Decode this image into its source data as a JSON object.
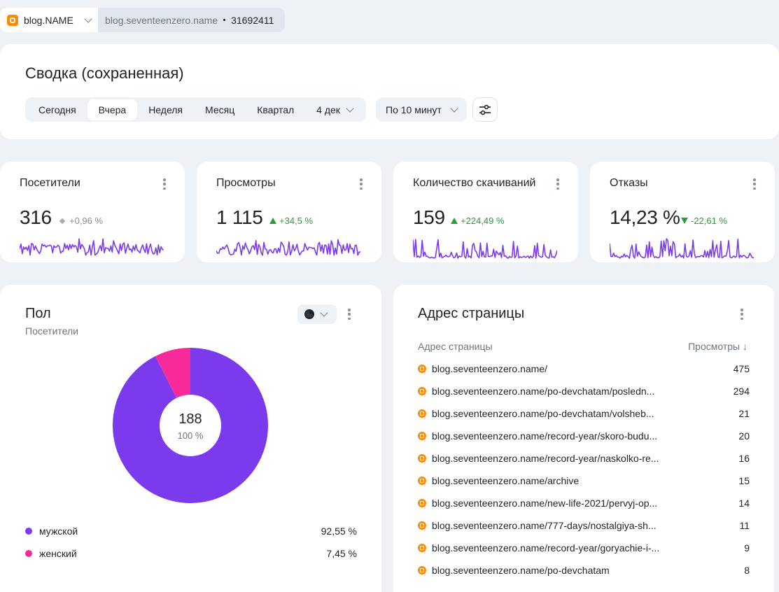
{
  "counter": {
    "name": "blog.NAME",
    "url": "blog.seventeenzero.name",
    "id": "31692411"
  },
  "header": {
    "title": "Сводка (сохраненная)",
    "periods": [
      "Сегодня",
      "Вчера",
      "Неделя",
      "Месяц",
      "Квартал"
    ],
    "active_period": "Вчера",
    "date_label": "4 дек",
    "grouping": "По 10 минут"
  },
  "metrics": [
    {
      "title": "Посетители",
      "value": "316",
      "delta": "+0,96 %",
      "trend": "flat"
    },
    {
      "title": "Просмотры",
      "value": "1 115",
      "delta": "+34,5 %",
      "trend": "up"
    },
    {
      "title": "Количество скачиваний",
      "value": "159",
      "delta": "+224,49 %",
      "trend": "up"
    },
    {
      "title": "Отказы",
      "value": "14,23 %",
      "delta": "-22,61 %",
      "trend": "down"
    }
  ],
  "colors": {
    "accent": "#7c3aed",
    "female": "#f72a9a",
    "positive": "#2e9c3d",
    "blog_icon": "#ff8a00"
  },
  "gender": {
    "title": "Пол",
    "subtitle": "Посетители",
    "total": "188",
    "total_pct": "100 %",
    "legend": [
      {
        "label": "мужской",
        "pct": "92,55 %",
        "value": 92.55
      },
      {
        "label": "женский",
        "pct": "7,45 %",
        "value": 7.45
      }
    ]
  },
  "pages": {
    "title": "Адрес страницы",
    "col_url": "Адрес страницы",
    "col_views": "Просмотры ↓",
    "rows": [
      {
        "url": "blog.seventeenzero.name/",
        "views": "475"
      },
      {
        "url": "blog.seventeenzero.name/po-devchatam/posledn...",
        "views": "294"
      },
      {
        "url": "blog.seventeenzero.name/po-devchatam/volsheb...",
        "views": "21"
      },
      {
        "url": "blog.seventeenzero.name/record-year/skoro-budu...",
        "views": "20"
      },
      {
        "url": "blog.seventeenzero.name/record-year/naskolko-re...",
        "views": "16"
      },
      {
        "url": "blog.seventeenzero.name/archive",
        "views": "15"
      },
      {
        "url": "blog.seventeenzero.name/new-life-2021/pervyj-op...",
        "views": "14"
      },
      {
        "url": "blog.seventeenzero.name/777-days/nostalgiya-sh...",
        "views": "11"
      },
      {
        "url": "blog.seventeenzero.name/record-year/goryachie-i-...",
        "views": "9"
      },
      {
        "url": "blog.seventeenzero.name/po-devchatam",
        "views": "8"
      }
    ]
  }
}
